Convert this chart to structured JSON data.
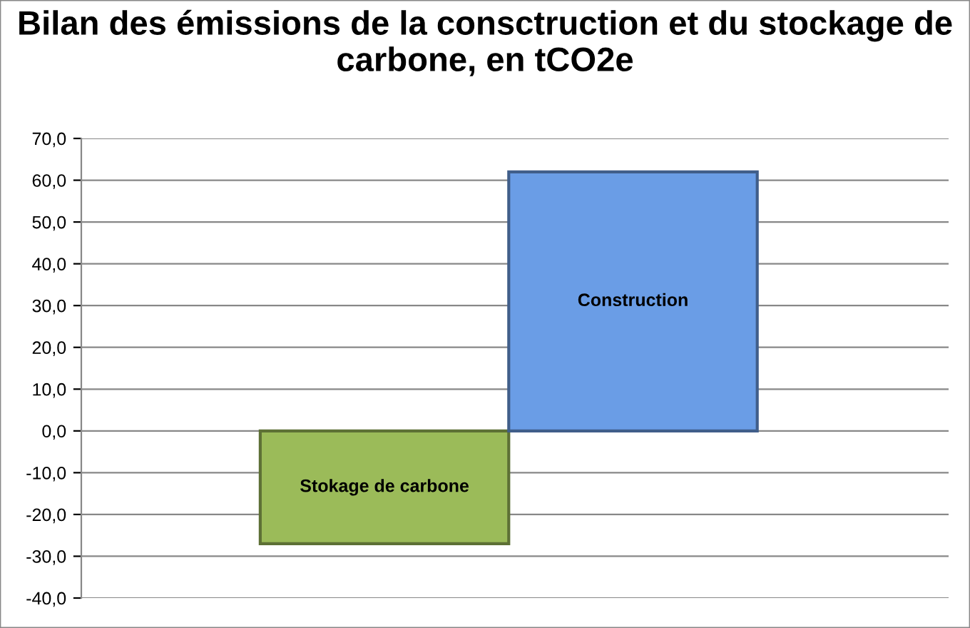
{
  "chart_data": {
    "type": "bar",
    "title": "Bilan des émissions de la consctruction et du stockage de carbone, en tCO2e",
    "categories": [
      "Stokage de carbone",
      "Construction"
    ],
    "values": [
      -27,
      62
    ],
    "colors": [
      "#9bbb59",
      "#6a9de6"
    ],
    "ylim": [
      -40,
      70
    ],
    "yticks": [
      {
        "value": -40,
        "label": "-40,0"
      },
      {
        "value": -30,
        "label": "-30,0"
      },
      {
        "value": -20,
        "label": "-20,0"
      },
      {
        "value": -10,
        "label": "-10,0"
      },
      {
        "value": 0,
        "label": "0,0"
      },
      {
        "value": 10,
        "label": "10,0"
      },
      {
        "value": 20,
        "label": "20,0"
      },
      {
        "value": 30,
        "label": "30,0"
      },
      {
        "value": 40,
        "label": "40,0"
      },
      {
        "value": 50,
        "label": "50,0"
      },
      {
        "value": 60,
        "label": "60,0"
      },
      {
        "value": 70,
        "label": "70,0"
      }
    ],
    "grid": "y"
  }
}
